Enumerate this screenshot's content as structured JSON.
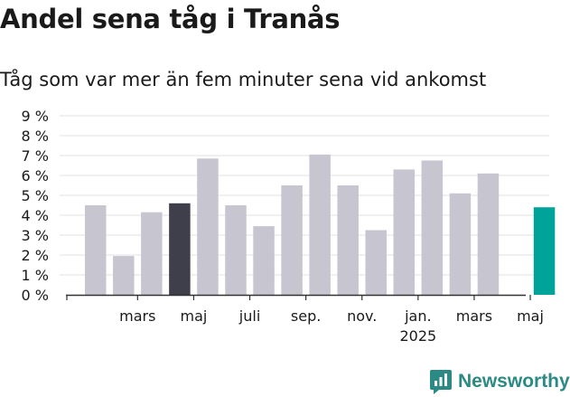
{
  "header": {
    "title": "Andel sena tåg i Tranås",
    "subtitle": "Tåg som var mer än fem minuter sena vid ankomst"
  },
  "brand": {
    "name": "Newsworthy",
    "icon": "newsworthy-logo-icon",
    "color": "#2b8a83"
  },
  "colors": {
    "default": "#c7c6d0",
    "highlight_dark": "#3f3e4b",
    "highlight_current": "#00a39a",
    "grid": "#e0e0e0",
    "axis": "#333333"
  },
  "chart_data": {
    "type": "bar",
    "title": "Andel sena tåg i Tranås",
    "subtitle": "Tåg som var mer än fem minuter sena vid ankomst",
    "ylim": [
      0,
      9
    ],
    "y_ticks": [
      "0 %",
      "1 %",
      "2 %",
      "3 %",
      "4 %",
      "5 %",
      "6 %",
      "7 %",
      "8 %",
      "9 %"
    ],
    "grid": true,
    "categories": [
      "2024-01",
      "2024-02",
      "2024-03",
      "2024-04",
      "2024-05",
      "2024-06",
      "2024-07",
      "2024-08",
      "2024-09",
      "2024-10",
      "2024-11",
      "2024-12",
      "2025-01",
      "2025-02",
      "2025-03",
      "2025-04",
      "2025-05"
    ],
    "values": [
      4.5,
      1.95,
      4.15,
      4.6,
      6.85,
      4.5,
      3.45,
      5.5,
      7.05,
      5.5,
      3.25,
      6.3,
      6.75,
      5.1,
      6.1,
      0,
      4.4
    ],
    "bar_styles": [
      "default",
      "default",
      "default",
      "highlight_dark",
      "default",
      "default",
      "default",
      "default",
      "default",
      "default",
      "default",
      "default",
      "default",
      "default",
      "default",
      "default",
      "highlight_current"
    ],
    "x_labels": [
      {
        "index": 1.5,
        "text": "mars"
      },
      {
        "index": 3.5,
        "text": "maj"
      },
      {
        "index": 5.5,
        "text": "juli"
      },
      {
        "index": 7.5,
        "text": "sep."
      },
      {
        "index": 9.5,
        "text": "nov."
      },
      {
        "index": 11.5,
        "text": "jan.",
        "sub": "2025"
      },
      {
        "index": 13.5,
        "text": "mars"
      },
      {
        "index": 15.5,
        "text": "maj"
      }
    ]
  }
}
